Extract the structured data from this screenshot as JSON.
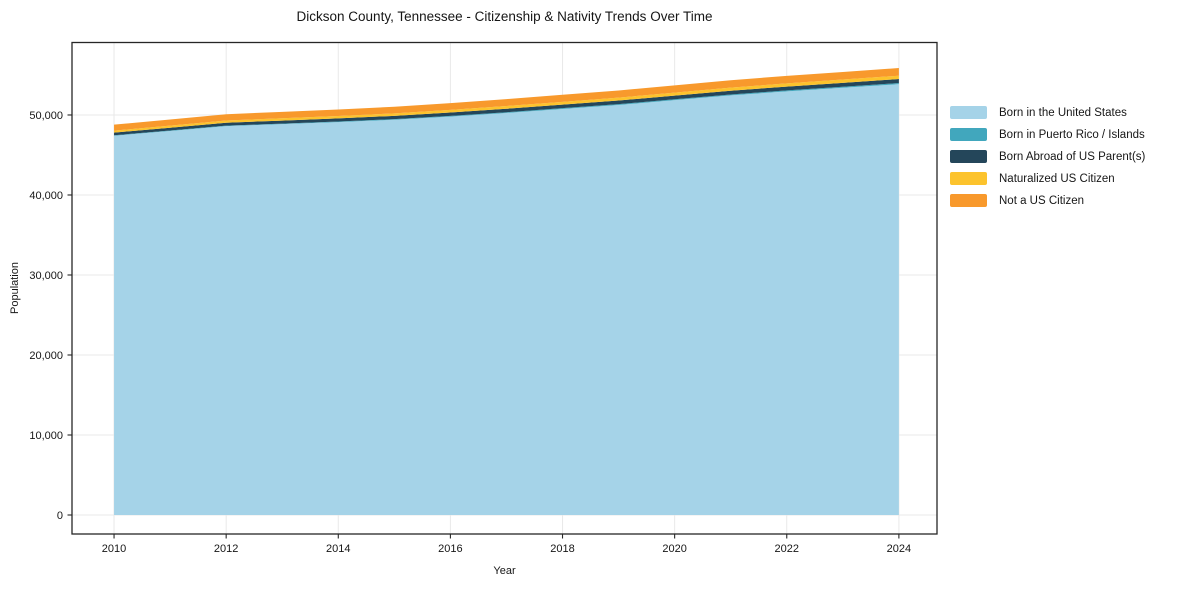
{
  "chart_data": {
    "type": "area",
    "stacked": true,
    "title": "Dickson County, Tennessee - Citizenship & Nativity Trends Over Time",
    "xlabel": "Year",
    "ylabel": "Population",
    "x": [
      2010,
      2011,
      2012,
      2013,
      2014,
      2015,
      2016,
      2017,
      2018,
      2019,
      2020,
      2021,
      2022,
      2023,
      2024
    ],
    "series": [
      {
        "name": "Born in the United States",
        "color": "#A5D3E8",
        "values": [
          47400,
          48000,
          48600,
          48850,
          49100,
          49400,
          49800,
          50250,
          50750,
          51250,
          51850,
          52450,
          52950,
          53400,
          53850
        ]
      },
      {
        "name": "Born in Puerto Rico / Islands",
        "color": "#41A7BD",
        "values": [
          60,
          65,
          70,
          75,
          80,
          85,
          90,
          95,
          100,
          105,
          110,
          115,
          120,
          130,
          140
        ]
      },
      {
        "name": "Born Abroad of US Parent(s)",
        "color": "#24465A",
        "values": [
          330,
          345,
          360,
          375,
          390,
          405,
          415,
          430,
          440,
          450,
          460,
          470,
          480,
          490,
          500
        ]
      },
      {
        "name": "Naturalized US Citizen",
        "color": "#FCC32D",
        "values": [
          250,
          260,
          275,
          285,
          295,
          310,
          330,
          345,
          355,
          365,
          375,
          385,
          395,
          410,
          420
        ]
      },
      {
        "name": "Not a US Citizen",
        "color": "#F8992C",
        "values": [
          750,
          770,
          790,
          805,
          815,
          830,
          850,
          865,
          880,
          895,
          910,
          925,
          940,
          950,
          960
        ]
      }
    ],
    "xticks": [
      2010,
      2012,
      2014,
      2016,
      2018,
      2020,
      2022,
      2024
    ],
    "yticks": [
      0,
      10000,
      20000,
      30000,
      40000,
      50000
    ],
    "xlim": [
      2009.25,
      2024.68
    ],
    "ylim": [
      -2375,
      59060
    ],
    "grid": true,
    "grid_color": "#e9e9e9",
    "spine_color": "#262626",
    "legend_position": "right"
  }
}
